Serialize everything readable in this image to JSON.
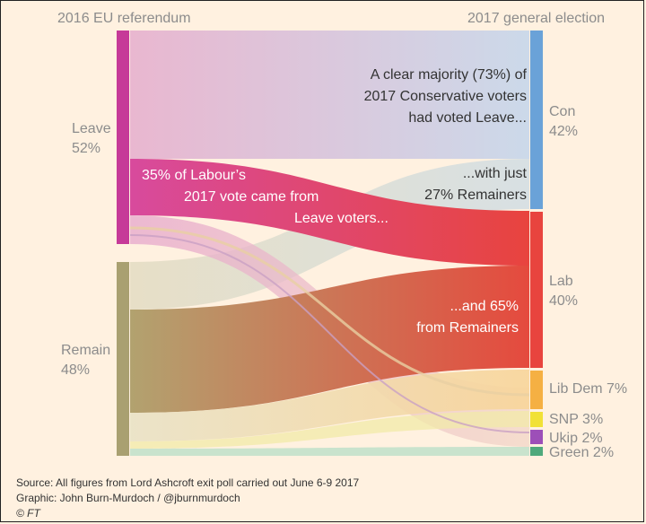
{
  "headers": {
    "left": "2016 EU referendum",
    "right": "2017 general election"
  },
  "left_nodes": [
    {
      "id": "leave",
      "label": "Leave",
      "pct": "52%",
      "color": "#c63a98"
    },
    {
      "id": "remain",
      "label": "Remain",
      "pct": "48%",
      "color": "#a9a071"
    }
  ],
  "right_nodes": [
    {
      "id": "con",
      "label": "Con",
      "pct": "42%",
      "color": "#6aa2d8"
    },
    {
      "id": "lab",
      "label": "Lab",
      "pct": "40%",
      "color": "#e8443e"
    },
    {
      "id": "libdem",
      "label": "Lib Dem 7%",
      "color": "#f5b043"
    },
    {
      "id": "snp",
      "label": "SNP 3%",
      "color": "#f1e136"
    },
    {
      "id": "ukip",
      "label": "Ukip 2%",
      "color": "#9d4fb8"
    },
    {
      "id": "green",
      "label": "Green 2%",
      "color": "#4fa97c"
    }
  ],
  "annotations": {
    "con_leave": [
      "A clear majority (73%) of",
      "2017 Conservative voters",
      "had voted Leave..."
    ],
    "con_remain": [
      "...with just",
      "27% Remainers"
    ],
    "lab_leave": [
      "35% of Labour’s",
      "2017 vote came from",
      "Leave voters..."
    ],
    "lab_remain": [
      "...and 65%",
      "from Remainers"
    ]
  },
  "footer": {
    "source": "Source: All figures from Lord Ashcroft exit poll carried out June 6-9 2017",
    "graphic": "Graphic: John Burn-Murdoch / @jburnmurdoch",
    "credit": "© FT"
  }
}
